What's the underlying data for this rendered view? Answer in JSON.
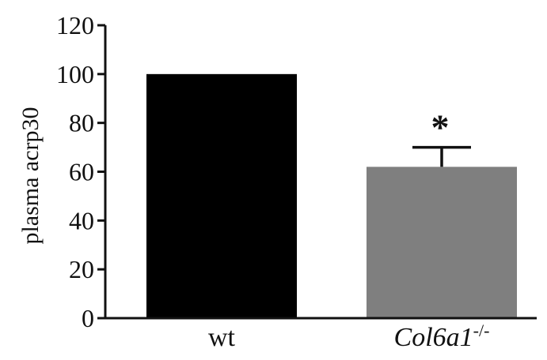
{
  "chart_data": {
    "type": "bar",
    "categories": [
      "wt",
      "Col6a1"
    ],
    "category_superscripts": [
      "",
      "-/-"
    ],
    "category_italic": [
      false,
      true
    ],
    "values": [
      100,
      62
    ],
    "error": [
      null,
      8
    ],
    "bar_colors": [
      "#000000",
      "#7f7f7f"
    ],
    "ylabel": "plasma acrp30",
    "xlabel": "",
    "ylim": [
      0,
      120
    ],
    "yticks": [
      0,
      20,
      40,
      60,
      80,
      100,
      120
    ],
    "annotations": [
      {
        "category": "Col6a1",
        "text": "*"
      }
    ],
    "grid": false
  }
}
